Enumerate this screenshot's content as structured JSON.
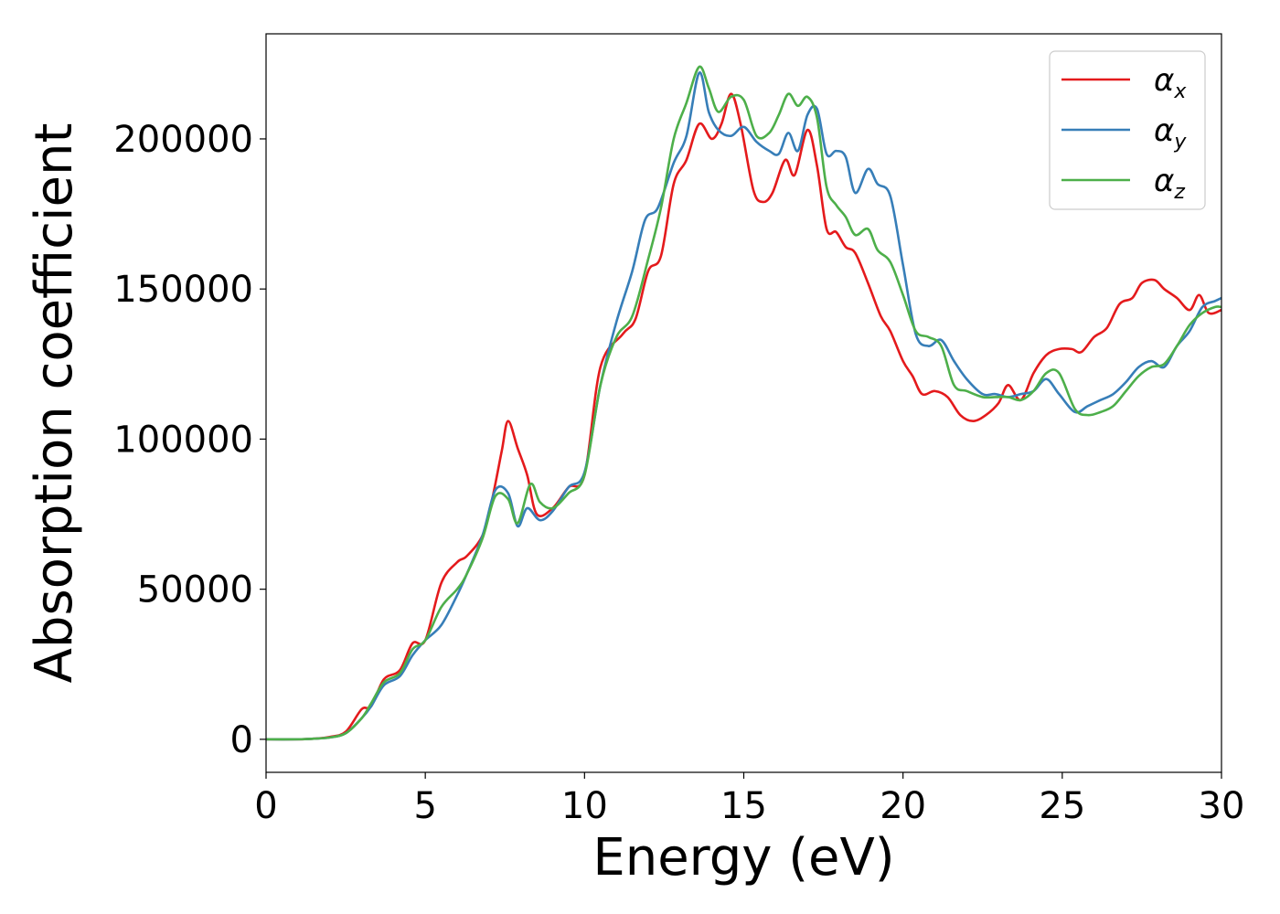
{
  "chart_data": {
    "type": "line",
    "xlabel": "Energy (eV)",
    "ylabel": "Absorption coefficient",
    "xlim": [
      0,
      30
    ],
    "ylim": [
      -11000,
      235000
    ],
    "x_ticks": [
      0,
      5,
      10,
      15,
      20,
      25,
      30
    ],
    "x_tick_labels": [
      "0",
      "5",
      "10",
      "15",
      "20",
      "25",
      "30"
    ],
    "y_ticks": [
      0,
      50000,
      100000,
      150000,
      200000
    ],
    "y_tick_labels": [
      "0",
      "50000",
      "100000",
      "150000",
      "200000"
    ],
    "grid": false,
    "legend_position": "top-right",
    "series": [
      {
        "name": "αx",
        "greek": "α",
        "subscript": "x",
        "color": "#e41a1c",
        "points": [
          [
            0,
            0
          ],
          [
            1,
            0
          ],
          [
            1.5,
            200
          ],
          [
            2,
            800
          ],
          [
            2.5,
            2500
          ],
          [
            3,
            10000
          ],
          [
            3.3,
            11000
          ],
          [
            3.7,
            20000
          ],
          [
            4.2,
            23000
          ],
          [
            4.6,
            32000
          ],
          [
            5,
            33000
          ],
          [
            5.5,
            52000
          ],
          [
            6,
            59000
          ],
          [
            6.3,
            61000
          ],
          [
            6.8,
            68000
          ],
          [
            7.1,
            80000
          ],
          [
            7.4,
            96000
          ],
          [
            7.6,
            106000
          ],
          [
            7.9,
            97000
          ],
          [
            8.2,
            88000
          ],
          [
            8.5,
            75000
          ],
          [
            9,
            77000
          ],
          [
            9.5,
            84000
          ],
          [
            10,
            88000
          ],
          [
            10.5,
            124000
          ],
          [
            11.2,
            135000
          ],
          [
            11.6,
            140000
          ],
          [
            12,
            156000
          ],
          [
            12.4,
            161000
          ],
          [
            12.8,
            185000
          ],
          [
            13.2,
            193000
          ],
          [
            13.6,
            205000
          ],
          [
            14,
            200000
          ],
          [
            14.3,
            205000
          ],
          [
            14.6,
            215000
          ],
          [
            14.9,
            205000
          ],
          [
            15.3,
            183000
          ],
          [
            15.6,
            179000
          ],
          [
            15.9,
            182000
          ],
          [
            16.3,
            193000
          ],
          [
            16.6,
            188000
          ],
          [
            17,
            203000
          ],
          [
            17.3,
            191000
          ],
          [
            17.6,
            170000
          ],
          [
            17.9,
            169000
          ],
          [
            18.2,
            164000
          ],
          [
            18.5,
            162000
          ],
          [
            18.9,
            152000
          ],
          [
            19.3,
            141000
          ],
          [
            19.6,
            136000
          ],
          [
            20,
            126000
          ],
          [
            20.3,
            121000
          ],
          [
            20.6,
            115000
          ],
          [
            21,
            116000
          ],
          [
            21.4,
            114000
          ],
          [
            21.8,
            108000
          ],
          [
            22.2,
            106000
          ],
          [
            22.6,
            108000
          ],
          [
            23,
            112000
          ],
          [
            23.3,
            118000
          ],
          [
            23.7,
            113000
          ],
          [
            24.1,
            122000
          ],
          [
            24.5,
            128000
          ],
          [
            24.9,
            130000
          ],
          [
            25.3,
            130000
          ],
          [
            25.6,
            129000
          ],
          [
            26,
            134000
          ],
          [
            26.4,
            137000
          ],
          [
            26.8,
            145000
          ],
          [
            27.2,
            147000
          ],
          [
            27.5,
            152000
          ],
          [
            27.9,
            153000
          ],
          [
            28.2,
            150000
          ],
          [
            28.6,
            147000
          ],
          [
            29,
            143000
          ],
          [
            29.3,
            148000
          ],
          [
            29.6,
            142000
          ],
          [
            30,
            143000
          ]
        ]
      },
      {
        "name": "αy",
        "greek": "α",
        "subscript": "y",
        "color": "#377eb8",
        "points": [
          [
            0,
            0
          ],
          [
            1,
            0
          ],
          [
            1.5,
            200
          ],
          [
            2,
            600
          ],
          [
            2.5,
            2000
          ],
          [
            3,
            7000
          ],
          [
            3.3,
            11000
          ],
          [
            3.7,
            18000
          ],
          [
            4.2,
            21000
          ],
          [
            4.6,
            28000
          ],
          [
            5,
            33000
          ],
          [
            5.5,
            38000
          ],
          [
            6,
            48000
          ],
          [
            6.3,
            55000
          ],
          [
            6.8,
            68000
          ],
          [
            7.2,
            83000
          ],
          [
            7.6,
            82000
          ],
          [
            7.9,
            71000
          ],
          [
            8.2,
            77000
          ],
          [
            8.6,
            73000
          ],
          [
            9,
            76000
          ],
          [
            9.5,
            84000
          ],
          [
            10,
            89000
          ],
          [
            10.5,
            118000
          ],
          [
            11,
            139000
          ],
          [
            11.5,
            156000
          ],
          [
            11.9,
            173000
          ],
          [
            12.3,
            177000
          ],
          [
            12.8,
            192000
          ],
          [
            13.2,
            201000
          ],
          [
            13.6,
            222000
          ],
          [
            13.9,
            209000
          ],
          [
            14.2,
            203000
          ],
          [
            14.6,
            201000
          ],
          [
            15,
            204000
          ],
          [
            15.4,
            199000
          ],
          [
            15.8,
            196000
          ],
          [
            16.1,
            195000
          ],
          [
            16.4,
            202000
          ],
          [
            16.7,
            196000
          ],
          [
            17,
            208000
          ],
          [
            17.3,
            210000
          ],
          [
            17.6,
            195000
          ],
          [
            17.9,
            196000
          ],
          [
            18.2,
            194000
          ],
          [
            18.5,
            182000
          ],
          [
            18.9,
            190000
          ],
          [
            19.2,
            185000
          ],
          [
            19.6,
            181000
          ],
          [
            20,
            158000
          ],
          [
            20.4,
            135000
          ],
          [
            20.8,
            131000
          ],
          [
            21.2,
            133000
          ],
          [
            21.6,
            126000
          ],
          [
            22,
            120000
          ],
          [
            22.5,
            115000
          ],
          [
            22.9,
            115000
          ],
          [
            23.3,
            114000
          ],
          [
            23.7,
            115000
          ],
          [
            24.1,
            116000
          ],
          [
            24.5,
            120000
          ],
          [
            24.9,
            115000
          ],
          [
            25.4,
            109000
          ],
          [
            25.8,
            111000
          ],
          [
            26.2,
            113000
          ],
          [
            26.6,
            115000
          ],
          [
            27,
            119000
          ],
          [
            27.4,
            124000
          ],
          [
            27.8,
            126000
          ],
          [
            28.2,
            124000
          ],
          [
            28.6,
            131000
          ],
          [
            29,
            136000
          ],
          [
            29.4,
            144000
          ],
          [
            29.8,
            146000
          ],
          [
            30,
            147000
          ]
        ]
      },
      {
        "name": "αz",
        "greek": "α",
        "subscript": "z",
        "color": "#4daf4a",
        "points": [
          [
            0,
            0
          ],
          [
            1,
            0
          ],
          [
            1.5,
            200
          ],
          [
            2,
            600
          ],
          [
            2.5,
            2000
          ],
          [
            3,
            7000
          ],
          [
            3.3,
            12000
          ],
          [
            3.7,
            19000
          ],
          [
            4.2,
            22000
          ],
          [
            4.6,
            30000
          ],
          [
            5,
            33000
          ],
          [
            5.5,
            44000
          ],
          [
            6,
            50000
          ],
          [
            6.3,
            55000
          ],
          [
            6.8,
            67000
          ],
          [
            7.2,
            81000
          ],
          [
            7.6,
            80000
          ],
          [
            7.9,
            72000
          ],
          [
            8.3,
            85000
          ],
          [
            8.6,
            79000
          ],
          [
            9,
            77000
          ],
          [
            9.5,
            82000
          ],
          [
            10,
            88000
          ],
          [
            10.5,
            118000
          ],
          [
            11,
            134000
          ],
          [
            11.5,
            141000
          ],
          [
            12,
            160000
          ],
          [
            12.4,
            177000
          ],
          [
            12.8,
            200000
          ],
          [
            13.2,
            212000
          ],
          [
            13.6,
            224000
          ],
          [
            13.9,
            217000
          ],
          [
            14.2,
            209000
          ],
          [
            14.6,
            214000
          ],
          [
            15,
            213000
          ],
          [
            15.4,
            201000
          ],
          [
            15.8,
            202000
          ],
          [
            16.1,
            208000
          ],
          [
            16.4,
            215000
          ],
          [
            16.7,
            211000
          ],
          [
            17,
            214000
          ],
          [
            17.3,
            207000
          ],
          [
            17.6,
            184000
          ],
          [
            17.9,
            178000
          ],
          [
            18.2,
            174000
          ],
          [
            18.5,
            168000
          ],
          [
            18.9,
            170000
          ],
          [
            19.2,
            163000
          ],
          [
            19.6,
            159000
          ],
          [
            20,
            148000
          ],
          [
            20.4,
            136000
          ],
          [
            20.8,
            134000
          ],
          [
            21.2,
            131000
          ],
          [
            21.6,
            118000
          ],
          [
            22,
            116000
          ],
          [
            22.5,
            114000
          ],
          [
            22.9,
            114000
          ],
          [
            23.3,
            114000
          ],
          [
            23.7,
            113000
          ],
          [
            24.1,
            116000
          ],
          [
            24.5,
            122000
          ],
          [
            24.9,
            122000
          ],
          [
            25.4,
            110000
          ],
          [
            25.8,
            108000
          ],
          [
            26.2,
            109000
          ],
          [
            26.6,
            111000
          ],
          [
            27,
            116000
          ],
          [
            27.4,
            121000
          ],
          [
            27.8,
            124000
          ],
          [
            28.2,
            125000
          ],
          [
            28.6,
            131000
          ],
          [
            29,
            138000
          ],
          [
            29.4,
            142000
          ],
          [
            29.8,
            144000
          ],
          [
            30,
            144000
          ]
        ]
      }
    ]
  }
}
